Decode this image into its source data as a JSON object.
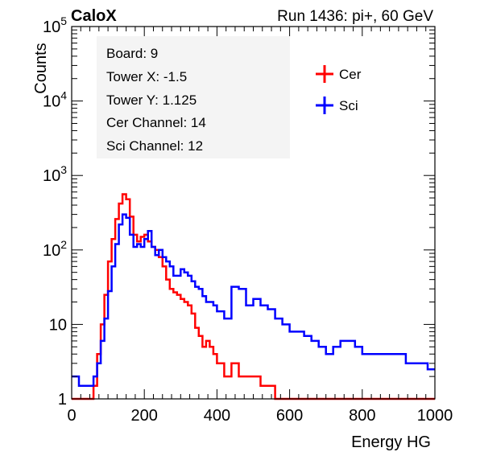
{
  "header": {
    "left_title": "CaloX",
    "right_title": "Run 1436: pi+, 60 GeV"
  },
  "info_box": {
    "lines": [
      "Board: 9",
      "Tower X: -1.5",
      "Tower Y: 1.125",
      "Cer Channel: 14",
      "Sci Channel: 12"
    ]
  },
  "chart_data": {
    "type": "line",
    "xlabel": "Energy HG",
    "ylabel": "Counts",
    "xlim": [
      0,
      1000
    ],
    "ylim": [
      1,
      100000
    ],
    "yscale": "log",
    "grid": false,
    "legend_position": "top-right",
    "x_ticks": [
      "0",
      "200",
      "400",
      "600",
      "800",
      "1000"
    ],
    "y_ticks": [
      "1",
      "10",
      "10^2",
      "10^3",
      "10^4",
      "10^5"
    ],
    "x": [
      0,
      10,
      20,
      30,
      40,
      50,
      60,
      70,
      80,
      90,
      100,
      110,
      120,
      130,
      140,
      150,
      160,
      170,
      180,
      190,
      200,
      210,
      220,
      230,
      240,
      250,
      260,
      270,
      280,
      290,
      300,
      310,
      320,
      330,
      340,
      350,
      360,
      370,
      380,
      390,
      400,
      420,
      440,
      460,
      480,
      500,
      520,
      540,
      560,
      580,
      600,
      620,
      640,
      660,
      680,
      700,
      720,
      740,
      760,
      780,
      800,
      820,
      840,
      860,
      880,
      900,
      920,
      940,
      960,
      980,
      1000
    ],
    "series": [
      {
        "name": "Cer",
        "color": "#ff0000",
        "values": [
          1,
          1,
          1,
          1,
          1,
          1,
          1.5,
          4,
          10,
          25,
          70,
          140,
          260,
          420,
          560,
          480,
          280,
          160,
          130,
          150,
          160,
          130,
          110,
          100,
          80,
          60,
          40,
          30,
          27,
          25,
          22,
          20,
          18,
          14,
          9,
          7,
          5,
          6,
          5,
          4,
          3,
          2,
          3,
          2,
          2,
          2,
          1.5,
          1.5,
          1,
          1,
          1,
          1,
          1,
          1,
          1,
          1,
          1,
          1,
          1,
          1,
          1,
          1,
          1,
          1,
          1,
          1,
          1,
          1,
          1,
          1,
          1
        ]
      },
      {
        "name": "Sci",
        "color": "#0000ff",
        "values": [
          2,
          2,
          1.5,
          1.5,
          1.5,
          1.5,
          2,
          3,
          6,
          12,
          28,
          60,
          120,
          220,
          300,
          270,
          160,
          110,
          120,
          110,
          140,
          180,
          110,
          85,
          100,
          80,
          70,
          60,
          45,
          45,
          55,
          50,
          45,
          38,
          32,
          30,
          24,
          20,
          20,
          18,
          15,
          12,
          32,
          30,
          18,
          22,
          18,
          16,
          12,
          10,
          8,
          8,
          7,
          6,
          5,
          4,
          5,
          6,
          6,
          5,
          4,
          4,
          4,
          4,
          4,
          4,
          3,
          3,
          3,
          2.5,
          2.5
        ]
      }
    ]
  }
}
